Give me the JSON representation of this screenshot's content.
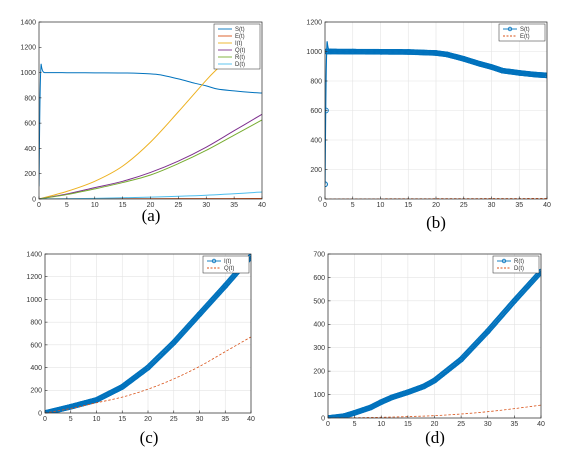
{
  "chart_data": [
    {
      "panel": "(a)",
      "type": "line",
      "xlim": [
        0,
        40
      ],
      "ylim": [
        0,
        1400
      ],
      "xticks": [
        0,
        5,
        10,
        15,
        20,
        25,
        30,
        35,
        40
      ],
      "yticks": [
        0,
        200,
        400,
        600,
        800,
        1000,
        1200,
        1400
      ],
      "grid": false,
      "legend_position": "top-right",
      "series": [
        {
          "name": "S(t)",
          "color": "#0072BD",
          "style": "solid",
          "x": [
            0,
            0.3,
            1,
            5,
            10,
            15,
            20,
            22,
            25,
            28,
            30,
            32,
            35,
            38,
            40
          ],
          "y": [
            100,
            1000,
            1000,
            999,
            998,
            997,
            990,
            980,
            950,
            915,
            895,
            870,
            855,
            843,
            838
          ]
        },
        {
          "name": "E(t)",
          "color": "#D95319",
          "style": "solid",
          "x": [
            0,
            10,
            20,
            30,
            40
          ],
          "y": [
            0,
            1,
            2,
            3,
            4
          ]
        },
        {
          "name": "I(t)",
          "color": "#EDB120",
          "style": "solid",
          "x": [
            0,
            5,
            10,
            15,
            20,
            25,
            30,
            32
          ],
          "y": [
            0,
            60,
            140,
            260,
            450,
            690,
            940,
            1030
          ]
        },
        {
          "name": "Q(t)",
          "color": "#7E2F8E",
          "style": "solid",
          "x": [
            0,
            5,
            10,
            15,
            20,
            25,
            30,
            35,
            40
          ],
          "y": [
            0,
            40,
            90,
            140,
            210,
            300,
            410,
            540,
            670
          ]
        },
        {
          "name": "R(t)",
          "color": "#77AC30",
          "style": "solid",
          "x": [
            0,
            5,
            10,
            15,
            20,
            25,
            30,
            35,
            40
          ],
          "y": [
            0,
            35,
            80,
            130,
            190,
            280,
            385,
            505,
            625
          ]
        },
        {
          "name": "D(t)",
          "color": "#4DBEEE",
          "style": "solid",
          "x": [
            0,
            10,
            20,
            30,
            40
          ],
          "y": [
            0,
            5,
            15,
            30,
            55
          ]
        }
      ]
    },
    {
      "panel": "(b)",
      "type": "line",
      "xlim": [
        0,
        40
      ],
      "ylim": [
        0,
        1200
      ],
      "xticks": [
        0,
        5,
        10,
        15,
        20,
        25,
        30,
        35,
        40
      ],
      "yticks": [
        0,
        200,
        400,
        600,
        800,
        1000,
        1200
      ],
      "grid": true,
      "legend_position": "top-right",
      "series": [
        {
          "name": "S(t)",
          "color": "#0072BD",
          "style": "solid-circle-markers",
          "x": [
            0,
            0.3,
            1,
            5,
            10,
            15,
            20,
            22,
            25,
            28,
            30,
            32,
            35,
            38,
            40
          ],
          "y": [
            100,
            1000,
            1000,
            999,
            998,
            997,
            990,
            980,
            950,
            915,
            895,
            870,
            855,
            843,
            838
          ]
        },
        {
          "name": "E(t)",
          "color": "#D95319",
          "style": "dashed",
          "x": [
            0,
            10,
            20,
            30,
            40
          ],
          "y": [
            0,
            1,
            2,
            3,
            4
          ]
        }
      ]
    },
    {
      "panel": "(c)",
      "type": "line",
      "xlim": [
        0,
        40
      ],
      "ylim": [
        0,
        1400
      ],
      "xticks": [
        0,
        5,
        10,
        15,
        20,
        25,
        30,
        35,
        40
      ],
      "yticks": [
        0,
        200,
        400,
        600,
        800,
        1000,
        1200,
        1400
      ],
      "grid": true,
      "legend_position": "top-right",
      "series": [
        {
          "name": "I(t)",
          "color": "#0072BD",
          "style": "solid-circle-markers",
          "x": [
            0,
            5,
            10,
            15,
            20,
            25,
            30,
            35,
            40
          ],
          "y": [
            0,
            55,
            115,
            230,
            400,
            620,
            870,
            1120,
            1380
          ]
        },
        {
          "name": "Q(t)",
          "color": "#D95319",
          "style": "dashed",
          "x": [
            0,
            5,
            10,
            15,
            20,
            25,
            30,
            35,
            40
          ],
          "y": [
            0,
            40,
            90,
            140,
            210,
            300,
            410,
            540,
            670
          ]
        }
      ]
    },
    {
      "panel": "(d)",
      "type": "line",
      "xlim": [
        0,
        40
      ],
      "ylim": [
        0,
        700
      ],
      "xticks": [
        0,
        5,
        10,
        15,
        20,
        25,
        30,
        35,
        40
      ],
      "yticks": [
        0,
        100,
        200,
        300,
        400,
        500,
        600,
        700
      ],
      "grid": true,
      "legend_position": "top-right",
      "series": [
        {
          "name": "R(t)",
          "color": "#0072BD",
          "style": "solid-circle-markers",
          "x": [
            0,
            3,
            5,
            8,
            10,
            12,
            15,
            18,
            20,
            25,
            30,
            35,
            40
          ],
          "y": [
            0,
            8,
            22,
            45,
            68,
            88,
            110,
            135,
            160,
            250,
            370,
            500,
            625
          ]
        },
        {
          "name": "D(t)",
          "color": "#D95319",
          "style": "dashed",
          "x": [
            0,
            5,
            10,
            15,
            20,
            25,
            30,
            35,
            40
          ],
          "y": [
            0,
            1,
            3,
            6,
            10,
            17,
            27,
            40,
            55
          ]
        }
      ]
    }
  ]
}
